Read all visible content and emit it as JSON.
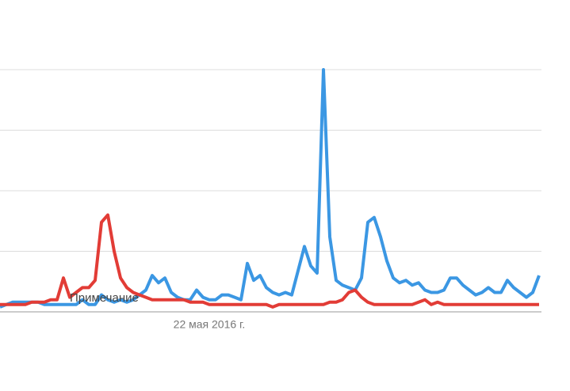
{
  "chart_data": {
    "type": "line",
    "annotation": "Примечание",
    "categories": [
      null,
      null,
      null,
      null,
      null,
      null,
      null,
      null,
      null,
      null,
      null,
      null,
      null,
      null,
      null,
      null,
      null,
      null,
      null,
      null,
      null,
      null,
      null,
      null,
      null,
      null,
      null,
      null,
      null,
      null,
      null,
      null,
      null,
      "22 мая 2016 г.",
      null,
      null,
      null,
      null,
      null,
      null,
      null,
      null,
      null,
      null,
      null,
      null,
      null,
      null,
      null,
      null,
      null,
      null,
      null,
      null,
      null,
      null,
      null,
      null,
      null,
      null,
      null,
      null,
      null,
      null,
      null,
      null,
      null,
      null,
      null,
      null,
      null,
      null,
      null,
      null,
      null,
      null,
      null,
      null,
      null,
      null,
      null,
      null,
      null,
      null,
      null,
      null
    ],
    "series": [
      {
        "name": "blue",
        "color": "#3b97e3",
        "values": [
          2,
          3,
          4,
          4,
          4,
          4,
          4,
          3,
          3,
          3,
          3,
          3,
          3,
          5,
          3,
          3,
          7,
          5,
          4,
          5,
          4,
          5,
          7,
          9,
          15,
          12,
          14,
          8,
          6,
          5,
          5,
          9,
          6,
          5,
          5,
          7,
          7,
          6,
          5,
          20,
          13,
          15,
          10,
          8,
          7,
          8,
          7,
          17,
          27,
          19,
          16,
          100,
          31,
          13,
          11,
          10,
          9,
          14,
          37,
          39,
          31,
          21,
          14,
          12,
          13,
          11,
          12,
          9,
          8,
          8,
          9,
          14,
          14,
          11,
          9,
          7,
          8,
          10,
          8,
          8,
          13,
          10,
          8,
          6,
          8,
          15
        ]
      },
      {
        "name": "red",
        "color": "#e23c36",
        "values": [
          3,
          3,
          3,
          3,
          3,
          4,
          4,
          4,
          5,
          5,
          14,
          6,
          8,
          10,
          10,
          13,
          37,
          40,
          25,
          14,
          10,
          8,
          7,
          6,
          5,
          5,
          5,
          5,
          5,
          5,
          4,
          4,
          4,
          3,
          3,
          3,
          3,
          3,
          3,
          3,
          3,
          3,
          3,
          2,
          3,
          3,
          3,
          3,
          3,
          3,
          3,
          3,
          4,
          4,
          5,
          8,
          9,
          6,
          4,
          3,
          3,
          3,
          3,
          3,
          3,
          3,
          4,
          5,
          3,
          4,
          3,
          3,
          3,
          3,
          3,
          3,
          3,
          3,
          3,
          3,
          3,
          3,
          3,
          3,
          3,
          3
        ]
      }
    ],
    "ylim": [
      0,
      100
    ],
    "yticks": [
      0,
      25,
      50,
      75,
      100
    ],
    "grid": true
  }
}
